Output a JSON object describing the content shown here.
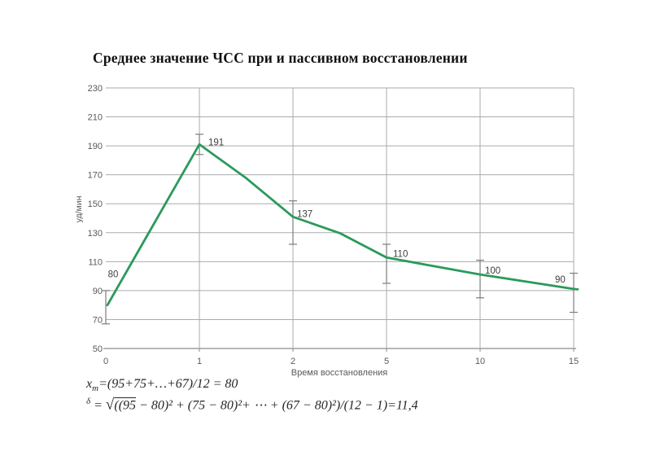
{
  "slide": {
    "title": "Среднее значение ЧСС при и пассивном восстановлении"
  },
  "chart_data": {
    "type": "line",
    "categories": [
      "0",
      "1",
      "2",
      "5",
      "10",
      "15"
    ],
    "values": [
      80,
      191,
      137,
      110,
      100,
      90
    ],
    "point_labels": [
      "80",
      "191",
      "137",
      "110",
      "100",
      "90"
    ],
    "error_low": [
      67,
      184,
      122,
      95,
      85,
      75
    ],
    "error_high": [
      90,
      198,
      152,
      122,
      111,
      102
    ],
    "xlabel": "Время восстановления",
    "ylabel": "уд/мин",
    "ylim": [
      50,
      230
    ],
    "ytick_step": 20,
    "grid": true,
    "legend": "none",
    "line_color": "#2b9a5b",
    "grid_color": "#ababab",
    "axis_color": "#8c8c8c",
    "errorbar_color": "#7d7d7d",
    "tick_label_color": "#595959",
    "point_label_color": "#3f3f3f"
  },
  "formulas": {
    "mean": {
      "var": "x",
      "sub": "m",
      "rest": "=(95+75+…+67)/12 = 80"
    },
    "stdev": {
      "lhs": "δ",
      "eq": " = ",
      "radical": "√",
      "under_bar": "((95",
      "rest": " − 80)² + (75 − 80)²+ ⋯ + (67 − 80)²)/(12 − 1)=11,4"
    }
  }
}
